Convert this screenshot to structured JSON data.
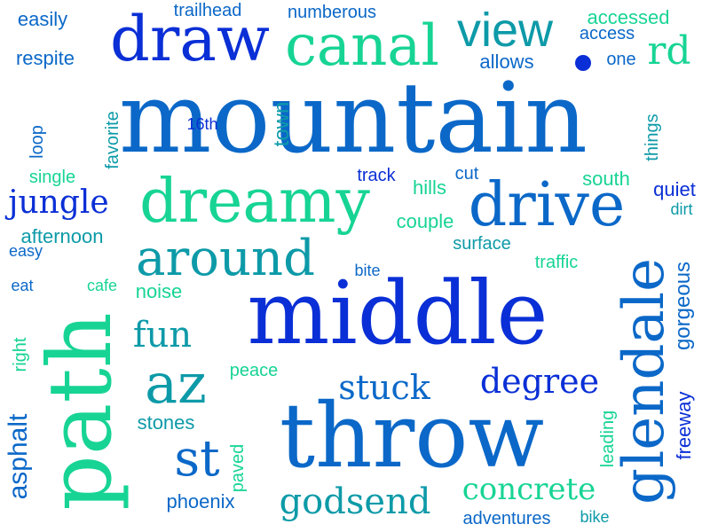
{
  "colors": {
    "blue": "#0a2fd6",
    "mid_blue": "#0b68c8",
    "teal": "#0d9aa8",
    "green": "#17d495",
    "background": "#ffffff"
  },
  "words": [
    {
      "text": "mountain",
      "color": "#0b68c8"
    },
    {
      "text": "middle",
      "color": "#0a2fd6"
    },
    {
      "text": "throw",
      "color": "#0b68c8"
    },
    {
      "text": "path",
      "color": "#17d495"
    },
    {
      "text": "glendale",
      "color": "#0b68c8"
    },
    {
      "text": "draw",
      "color": "#0a2fd6"
    },
    {
      "text": "canal",
      "color": "#17d495"
    },
    {
      "text": "dreamy",
      "color": "#17d495"
    },
    {
      "text": "drive",
      "color": "#0b68c8"
    },
    {
      "text": "view",
      "color": "#0d9aa8"
    },
    {
      "text": "around",
      "color": "#0d9aa8"
    },
    {
      "text": "az",
      "color": "#0d9aa8"
    },
    {
      "text": "st",
      "color": "#0b68c8"
    },
    {
      "text": "rd",
      "color": "#17d495"
    },
    {
      "text": "godsend",
      "color": "#0d9aa8"
    },
    {
      "text": "concrete",
      "color": "#17d495"
    },
    {
      "text": "stuck",
      "color": "#0b68c8"
    },
    {
      "text": "degree",
      "color": "#0a2fd6"
    },
    {
      "text": "fun",
      "color": "#0d9aa8"
    },
    {
      "text": "jungle",
      "color": "#0a2fd6"
    },
    {
      "text": "asphalt",
      "color": "#0b68c8"
    },
    {
      "text": "town",
      "color": "#0d9aa8"
    },
    {
      "text": "gorgeous",
      "color": "#0b68c8"
    },
    {
      "text": "freeway",
      "color": "#0a2fd6"
    },
    {
      "text": "easily",
      "color": "#0b68c8"
    },
    {
      "text": "trailhead",
      "color": "#0b68c8"
    },
    {
      "text": "numberous",
      "color": "#0b68c8"
    },
    {
      "text": "accessed",
      "color": "#17d495"
    },
    {
      "text": "access",
      "color": "#0b68c8"
    },
    {
      "text": "respite",
      "color": "#0b68c8"
    },
    {
      "text": "allows",
      "color": "#0b68c8"
    },
    {
      "text": "one",
      "color": "#0b68c8"
    },
    {
      "text": "16th",
      "color": "#0a2fd6"
    },
    {
      "text": "favorite",
      "color": "#0d9aa8"
    },
    {
      "text": "loop",
      "color": "#0b68c8"
    },
    {
      "text": "things",
      "color": "#0d9aa8"
    },
    {
      "text": "single",
      "color": "#17d495"
    },
    {
      "text": "track",
      "color": "#0a2fd6"
    },
    {
      "text": "cut",
      "color": "#0b68c8"
    },
    {
      "text": "hills",
      "color": "#17d495"
    },
    {
      "text": "south",
      "color": "#17d495"
    },
    {
      "text": "quiet",
      "color": "#0a2fd6"
    },
    {
      "text": "dirt",
      "color": "#0d9aa8"
    },
    {
      "text": "afternoon",
      "color": "#0d9aa8"
    },
    {
      "text": "couple",
      "color": "#17d495"
    },
    {
      "text": "surface",
      "color": "#0d9aa8"
    },
    {
      "text": "easy",
      "color": "#0b68c8"
    },
    {
      "text": "eat",
      "color": "#0b68c8"
    },
    {
      "text": "cafe",
      "color": "#17d495"
    },
    {
      "text": "noise",
      "color": "#17d495"
    },
    {
      "text": "bite",
      "color": "#0b68c8"
    },
    {
      "text": "traffic",
      "color": "#17d495"
    },
    {
      "text": "right",
      "color": "#17d495"
    },
    {
      "text": "peace",
      "color": "#17d495"
    },
    {
      "text": "stones",
      "color": "#0d9aa8"
    },
    {
      "text": "paved",
      "color": "#17d495"
    },
    {
      "text": "leading",
      "color": "#17d495"
    },
    {
      "text": "phoenix",
      "color": "#0b68c8"
    },
    {
      "text": "adventures",
      "color": "#0b68c8"
    },
    {
      "text": "bike",
      "color": "#0d9aa8"
    }
  ]
}
